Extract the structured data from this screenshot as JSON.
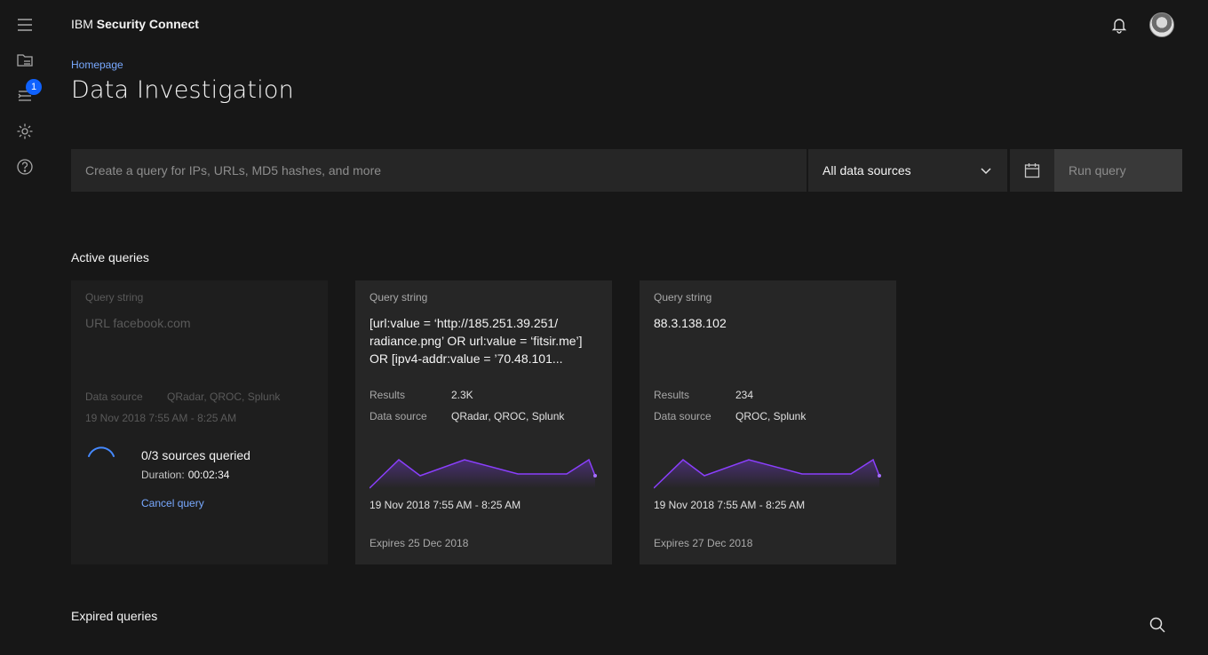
{
  "app": {
    "brand_prefix": "IBM",
    "brand_name": "Security Connect"
  },
  "rail": {
    "notification_count": "1"
  },
  "breadcrumb": "Homepage",
  "page_title": "Data Investigation",
  "query_bar": {
    "placeholder": "Create a query for IPs, URLs, MD5 hashes, and more",
    "source_selected": "All data sources",
    "run_label": "Run query"
  },
  "sections": {
    "active": "Active queries",
    "expired": "Expired queries"
  },
  "cards": [
    {
      "label": "Query string",
      "query": "URL facebook.com",
      "source_label": "Data source",
      "source_value": "QRadar, QROC, Splunk",
      "date": "19 Nov 2018 7:55 AM - 8:25 AM",
      "status": "0/3 sources queried",
      "duration_label": "Duration:",
      "duration_value": "00:02:34",
      "cancel_label": "Cancel query"
    },
    {
      "label": "Query string",
      "query": "[url:value = ‘http://185.251.39.251/ radiance.png’ OR url:value = ‘fitsir.me’] OR [ipv4-addr:value = ’70.48.101...",
      "results_label": "Results",
      "results_value": "2.3K",
      "source_label": "Data source",
      "source_value": "QRadar, QROC, Splunk",
      "date": "19 Nov 2018 7:55 AM - 8:25 AM",
      "expires": "Expires 25 Dec 2018"
    },
    {
      "label": "Query string",
      "query": "88.3.138.102",
      "results_label": "Results",
      "results_value": "234",
      "source_label": "Data source",
      "source_value": "QROC, Splunk",
      "date": "19 Nov 2018 7:55 AM - 8:25 AM",
      "expires": "Expires 27 Dec 2018"
    }
  ],
  "colors": {
    "accent": "#0f62fe",
    "link": "#78a9ff",
    "sparkline": "#8a3ffc"
  },
  "icons": [
    "menu-icon",
    "folder-icon",
    "list-icon",
    "settings-icon",
    "help-icon",
    "notification-icon",
    "calendar-icon",
    "chevron-down-icon",
    "search-icon"
  ]
}
